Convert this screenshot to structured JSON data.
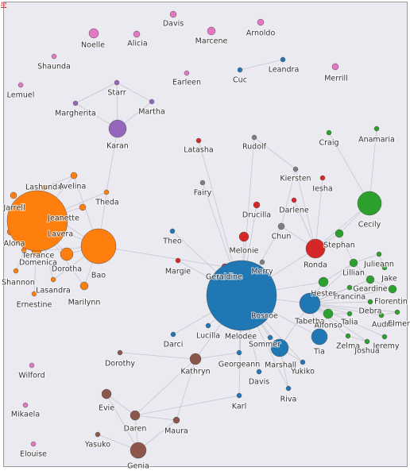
{
  "header": {
    "link": "te"
  },
  "nodes": [
    {
      "label": "Davis"
    },
    {
      "label": "Noelle"
    },
    {
      "label": "Alicia"
    },
    {
      "label": "Marcene"
    },
    {
      "label": "Arnoldo"
    },
    {
      "label": "Shaunda"
    },
    {
      "label": "Cuc"
    },
    {
      "label": "Leandra"
    },
    {
      "label": "Merrill"
    },
    {
      "label": "Earleen"
    },
    {
      "label": "Lemuel"
    },
    {
      "label": "Starr"
    },
    {
      "label": "Margherita"
    },
    {
      "label": "Martha"
    },
    {
      "label": "Karan"
    },
    {
      "label": "Latasha"
    },
    {
      "label": "Rudolf"
    },
    {
      "label": "Craig"
    },
    {
      "label": "Anamaria"
    },
    {
      "label": "Kiersten"
    },
    {
      "label": "Iesha"
    },
    {
      "label": "Fairy"
    },
    {
      "label": "Drucilla"
    },
    {
      "label": "Darlene"
    },
    {
      "label": "Cecily"
    },
    {
      "label": "Chun"
    },
    {
      "label": "Stephan"
    },
    {
      "label": "Theo"
    },
    {
      "label": "Melonie"
    },
    {
      "label": "Ronda"
    },
    {
      "label": "Julieann"
    },
    {
      "label": "Margie"
    },
    {
      "label": "Merry"
    },
    {
      "label": "Geraldine"
    },
    {
      "label": "Lillian"
    },
    {
      "label": "Jake"
    },
    {
      "label": "Geardine"
    },
    {
      "label": "Florentin"
    },
    {
      "label": "Francina"
    },
    {
      "label": "Hester"
    },
    {
      "label": "Melodee"
    },
    {
      "label": "Debra"
    },
    {
      "label": "Roscoe"
    },
    {
      "label": "Tabetha"
    },
    {
      "label": "Alfonso"
    },
    {
      "label": "Audra"
    },
    {
      "label": "Elmer"
    },
    {
      "label": "Talia"
    },
    {
      "label": "Lucilla"
    },
    {
      "label": "Darci"
    },
    {
      "label": "Sommer"
    },
    {
      "label": "Tia"
    },
    {
      "label": "Zelma"
    },
    {
      "label": "Jeremy"
    },
    {
      "label": "Joshua"
    },
    {
      "label": "Marshall"
    },
    {
      "label": "Georgeann"
    },
    {
      "label": "Yukiko"
    },
    {
      "label": "Dorothy"
    },
    {
      "label": "Kathryn"
    },
    {
      "label": "Davis"
    },
    {
      "label": "Wilford"
    },
    {
      "label": "Karl"
    },
    {
      "label": "Riva"
    },
    {
      "label": "Evie"
    },
    {
      "label": "Mikaela"
    },
    {
      "label": "Daren"
    },
    {
      "label": "Maura"
    },
    {
      "label": "Yasuko"
    },
    {
      "label": "Elouise"
    },
    {
      "label": "Genia"
    },
    {
      "label": "Jarrell"
    },
    {
      "label": "Lashunda"
    },
    {
      "label": "Avelina"
    },
    {
      "label": "Theda"
    },
    {
      "label": "Jeanette"
    },
    {
      "label": "Lavera"
    },
    {
      "label": "Alona"
    },
    {
      "label": "Domenica"
    },
    {
      "label": "Terrance"
    },
    {
      "label": "Dorotha"
    },
    {
      "label": "Shannon"
    },
    {
      "label": "Lasandra"
    },
    {
      "label": "Ernestine"
    },
    {
      "label": "Marilynn"
    },
    {
      "label": "Bao"
    }
  ]
}
